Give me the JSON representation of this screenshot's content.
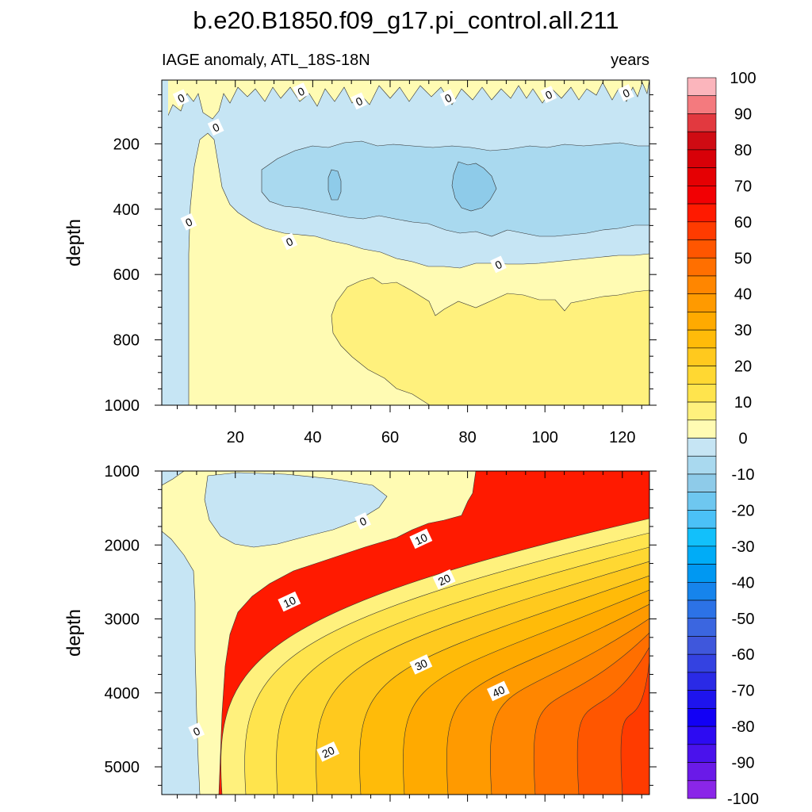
{
  "figure": {
    "title": "b.e20.B1850.f09_g17.pi_control.all.211",
    "left_subtitle": "IAGE anomaly, ATL_18S-18N",
    "right_subtitle": "years"
  },
  "chart_data": [
    {
      "type": "heatmap",
      "panel": "upper",
      "title": "",
      "xlabel": "",
      "ylabel": "depth",
      "x_range": [
        1,
        127
      ],
      "y_range": [
        5,
        1000
      ],
      "y_reversed": true,
      "x_ticks": [
        20,
        40,
        60,
        80,
        100,
        120
      ],
      "x_tick_labels": [
        "20",
        "40",
        "60",
        "80",
        "100",
        "120"
      ],
      "y_ticks": [
        200,
        400,
        600,
        800,
        1000
      ],
      "y_tick_labels": [
        "200",
        "400",
        "600",
        "800",
        "1000"
      ],
      "contour_levels": [
        0,
        5,
        10
      ],
      "contour_labels": [
        {
          "text": "0",
          "x": 6,
          "y": 60
        },
        {
          "text": "0",
          "x": 15,
          "y": 150
        },
        {
          "text": "0",
          "x": 8,
          "y": 440
        },
        {
          "text": "0",
          "x": 37,
          "y": 40
        },
        {
          "text": "0",
          "x": 52,
          "y": 70
        },
        {
          "text": "0",
          "x": 75,
          "y": 60
        },
        {
          "text": "0",
          "x": 101,
          "y": 50
        },
        {
          "text": "0",
          "x": 121,
          "y": 45
        },
        {
          "text": "0",
          "x": 34,
          "y": 500
        },
        {
          "text": "0",
          "x": 88,
          "y": 570
        }
      ]
    },
    {
      "type": "heatmap",
      "panel": "lower",
      "title": "",
      "xlabel": "",
      "ylabel": "depth",
      "x_range": [
        1,
        127
      ],
      "y_range": [
        1000,
        5375
      ],
      "y_reversed": true,
      "x_ticks": [
        20,
        40,
        60,
        80,
        100,
        120
      ],
      "x_tick_labels": [
        "",
        "",
        "",
        "",
        "",
        ""
      ],
      "y_ticks": [
        1000,
        2000,
        3000,
        4000,
        5000
      ],
      "y_tick_labels": [
        "1000",
        "2000",
        "3000",
        "4000",
        "5000"
      ],
      "contour_levels": [
        0,
        5,
        10,
        15,
        20,
        25,
        30,
        35,
        40,
        45,
        50,
        55,
        60
      ],
      "contour_labels": [
        {
          "text": "0",
          "x": 53,
          "y": 1680
        },
        {
          "text": "10",
          "x": 68,
          "y": 1920
        },
        {
          "text": "20",
          "x": 74,
          "y": 2470
        },
        {
          "text": "10",
          "x": 34,
          "y": 2770
        },
        {
          "text": "30",
          "x": 68,
          "y": 3620
        },
        {
          "text": "40",
          "x": 88,
          "y": 3980
        },
        {
          "text": "0",
          "x": 10,
          "y": 4520
        },
        {
          "text": "20",
          "x": 44,
          "y": 4800
        }
      ]
    }
  ],
  "colorbar": {
    "orientation": "vertical",
    "levels": [
      -100,
      -95,
      -90,
      -85,
      -80,
      -75,
      -70,
      -65,
      -60,
      -55,
      -50,
      -45,
      -40,
      -35,
      -30,
      -25,
      -20,
      -15,
      -10,
      -5,
      0,
      5,
      10,
      15,
      20,
      25,
      30,
      35,
      40,
      45,
      50,
      55,
      60,
      65,
      70,
      75,
      80,
      85,
      90,
      95,
      100
    ],
    "labels": [
      "100",
      "90",
      "80",
      "70",
      "60",
      "50",
      "40",
      "30",
      "20",
      "10",
      "0",
      "-10",
      "-20",
      "-30",
      "-40",
      "-50",
      "-60",
      "-70",
      "-80",
      "-90",
      "-100"
    ],
    "label_values": [
      100,
      90,
      80,
      70,
      60,
      50,
      40,
      30,
      20,
      10,
      0,
      -10,
      -20,
      -30,
      -40,
      -50,
      -60,
      -70,
      -80,
      -90,
      -100
    ],
    "colors_top_to_bottom": [
      "#fbb5bc",
      "#f47a7e",
      "#e2393f",
      "#cf0b13",
      "#d80008",
      "#e50003",
      "#f20003",
      "#ff1a00",
      "#ff3b00",
      "#ff5600",
      "#ff6f00",
      "#ff8600",
      "#ff9a00",
      "#ffaa00",
      "#ffbb09",
      "#ffc91e",
      "#ffd832",
      "#ffe44d",
      "#fff17d",
      "#fffbb3",
      "#c6e5f4",
      "#a9d9ef",
      "#8ecbe9",
      "#6ec7f0",
      "#4bc1f7",
      "#12c0fb",
      "#00acf7",
      "#0098f2",
      "#1684ec",
      "#2c72e6",
      "#3b66e0",
      "#3f57dc",
      "#3442e1",
      "#2a2ae6",
      "#1e14ee",
      "#1200f5",
      "#2d0bf2",
      "#4a12ec",
      "#6a1ae8",
      "#8a26e8"
    ]
  },
  "palette": {
    "zero": "#c6e5f4",
    "neg10": "#a9d9ef",
    "neg20": "#8ecbe9",
    "p0": "#fffbb3",
    "p5": "#fff17d",
    "p10": "#ffe44d",
    "p15": "#ffd832",
    "p20": "#ffc91e",
    "p25": "#ffbb09",
    "p30": "#ffaa00",
    "p35": "#ff9a00",
    "p40": "#ff8600",
    "p45": "#ff6f00",
    "p50": "#ff5600",
    "p55": "#ff3b00",
    "p60": "#ff1a00"
  }
}
